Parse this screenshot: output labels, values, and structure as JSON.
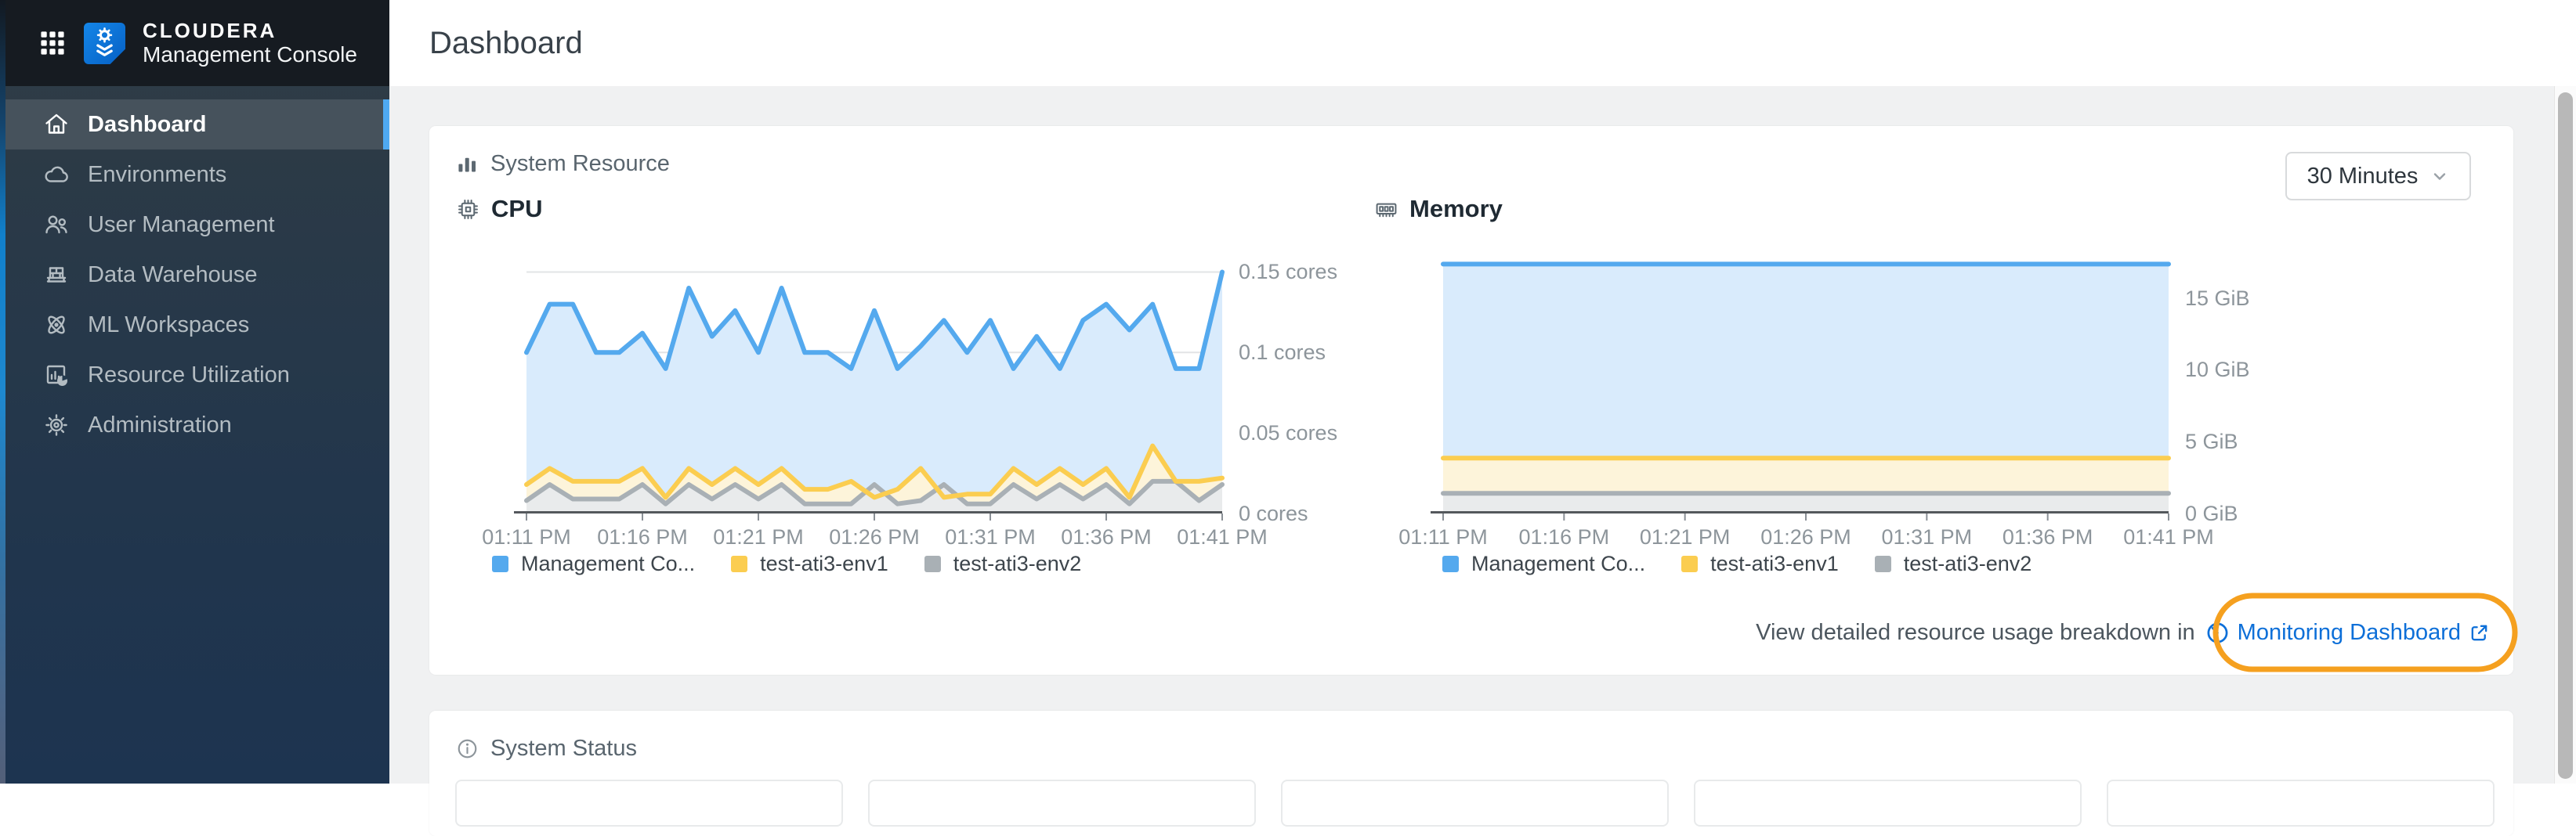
{
  "sidebar": {
    "brand_title": "CLOUDERA",
    "brand_subtitle": "Management Console",
    "items": [
      {
        "label": "Dashboard",
        "icon": "home-icon",
        "selected": true
      },
      {
        "label": "Environments",
        "icon": "cloud-icon",
        "selected": false
      },
      {
        "label": "User Management",
        "icon": "users-icon",
        "selected": false
      },
      {
        "label": "Data Warehouse",
        "icon": "warehouse-icon",
        "selected": false
      },
      {
        "label": "ML Workspaces",
        "icon": "atom-icon",
        "selected": false
      },
      {
        "label": "Resource Utilization",
        "icon": "chart-pie-icon",
        "selected": false
      },
      {
        "label": "Administration",
        "icon": "gear-icon",
        "selected": false
      }
    ]
  },
  "header": {
    "title": "Dashboard"
  },
  "system_resource": {
    "title": "System Resource",
    "time_range": "30 Minutes",
    "link_prefix": "View detailed resource usage breakdown in",
    "link_text": "Monitoring Dashboard"
  },
  "system_status": {
    "title": "System Status"
  },
  "colors": {
    "selected_indicator": "#4fa9f1",
    "link_blue": "#0d6fd8",
    "annotation_orange": "#f5a01f",
    "gridline": "#e2e4e6",
    "axis_line": "#54585c",
    "axis_label": "#8d959b"
  },
  "chart_data": [
    {
      "type": "area",
      "title": "CPU",
      "ylabel": "cores",
      "ylim": [
        0,
        0.158
      ],
      "grid": true,
      "legend_position": "bottom",
      "x_labels": [
        "01:11 PM",
        "01:16 PM",
        "01:21 PM",
        "01:26 PM",
        "01:31 PM",
        "01:36 PM",
        "01:41 PM"
      ],
      "y_ticks": [
        {
          "value": 0.15,
          "label": "0.15 cores"
        },
        {
          "value": 0.1,
          "label": "0.1 cores"
        },
        {
          "value": 0.05,
          "label": "0.05 cores"
        },
        {
          "value": 0,
          "label": "0 cores"
        }
      ],
      "series": [
        {
          "name": "Management Co...",
          "color": "#54a9ee",
          "fill": "#d9ebfc",
          "values": [
            0.1,
            0.13,
            0.13,
            0.1,
            0.1,
            0.112,
            0.09,
            0.14,
            0.11,
            0.126,
            0.1,
            0.14,
            0.1,
            0.1,
            0.09,
            0.126,
            0.09,
            0.104,
            0.12,
            0.1,
            0.12,
            0.09,
            0.11,
            0.09,
            0.12,
            0.13,
            0.114,
            0.13,
            0.09,
            0.09,
            0.15
          ]
        },
        {
          "name": "test-ati3-env1",
          "color": "#fbcd50",
          "fill": "#fdf4da",
          "values": [
            0.018,
            0.028,
            0.02,
            0.02,
            0.02,
            0.028,
            0.01,
            0.028,
            0.018,
            0.028,
            0.018,
            0.028,
            0.015,
            0.015,
            0.02,
            0.01,
            0.015,
            0.028,
            0.01,
            0.012,
            0.012,
            0.028,
            0.018,
            0.028,
            0.018,
            0.028,
            0.01,
            0.042,
            0.02,
            0.02,
            0.022
          ]
        },
        {
          "name": "test-ati3-env2",
          "color": "#a9b0b5",
          "fill": "#e9ebec",
          "values": [
            0.008,
            0.018,
            0.009,
            0.009,
            0.009,
            0.018,
            0.006,
            0.018,
            0.009,
            0.018,
            0.009,
            0.018,
            0.006,
            0.006,
            0.006,
            0.018,
            0.006,
            0.008,
            0.018,
            0.006,
            0.006,
            0.018,
            0.009,
            0.018,
            0.009,
            0.018,
            0.006,
            0.02,
            0.02,
            0.008,
            0.018
          ]
        }
      ]
    },
    {
      "type": "area",
      "title": "Memory",
      "ylabel": "GiB",
      "ylim": [
        0,
        17.7
      ],
      "grid": true,
      "legend_position": "bottom",
      "x_labels": [
        "01:11 PM",
        "01:16 PM",
        "01:21 PM",
        "01:26 PM",
        "01:31 PM",
        "01:36 PM",
        "01:41 PM"
      ],
      "y_ticks": [
        {
          "value": 15,
          "label": "15 GiB"
        },
        {
          "value": 10,
          "label": "10 GiB"
        },
        {
          "value": 5,
          "label": "5 GiB"
        },
        {
          "value": 0,
          "label": "0 GiB"
        }
      ],
      "series": [
        {
          "name": "Management Co...",
          "color": "#54a9ee",
          "fill": "#d9ebfc",
          "values": [
            17.35,
            17.35
          ]
        },
        {
          "name": "test-ati3-env1",
          "color": "#fbcd50",
          "fill": "#fdf4da",
          "values": [
            3.85,
            3.85
          ]
        },
        {
          "name": "test-ati3-env2",
          "color": "#a9b0b5",
          "fill": "#e9ebec",
          "values": [
            1.4,
            1.4
          ]
        }
      ]
    }
  ]
}
